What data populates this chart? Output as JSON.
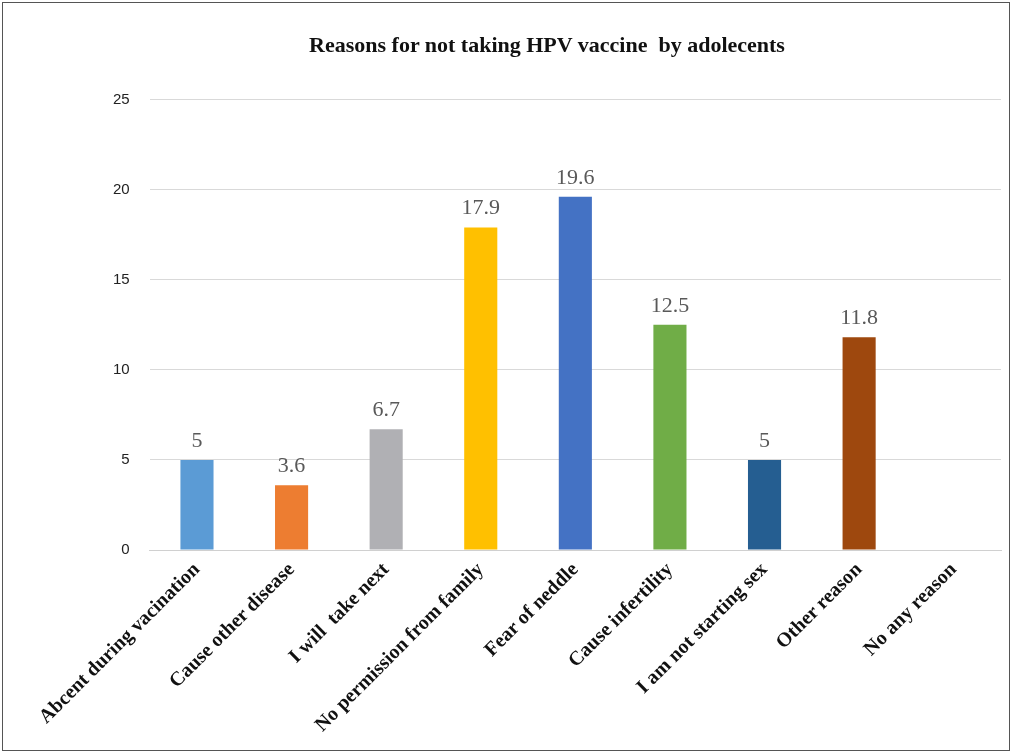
{
  "chart_data": {
    "type": "bar",
    "title": "Reasons for not taking HPV vaccine  by adolecents",
    "categories": [
      "Abcent during vacination",
      "Cause other disease",
      "I will  take next",
      "No permission from family",
      "Fear of neddle",
      "Cause infertility",
      "I am not starting sex",
      "Other reason",
      "No any reason"
    ],
    "values": [
      5,
      3.6,
      6.7,
      17.9,
      19.6,
      12.5,
      5,
      11.8,
      null
    ],
    "colors": [
      "#5b9bd5",
      "#ed7d31",
      "#b0b0b4",
      "#ffc000",
      "#4472c4",
      "#70ad47",
      "#255e91",
      "#9e480e",
      "#636363"
    ],
    "ylim": [
      0,
      25
    ],
    "yticks": [
      0,
      5,
      10,
      15,
      20,
      25
    ],
    "grid": "y",
    "data_labels": true
  }
}
